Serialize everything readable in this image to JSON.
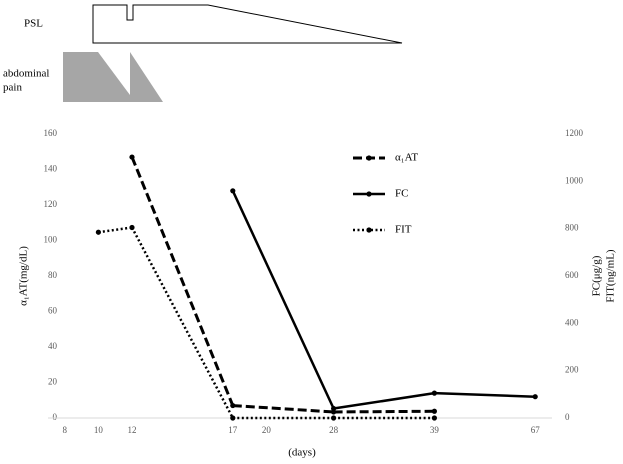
{
  "diagram": {
    "psl": "PSL",
    "pain": [
      "abdominal",
      "pain"
    ]
  },
  "chart_data": {
    "type": "line",
    "categories": [
      "8",
      "10",
      "12",
      null,
      null,
      "17",
      "20",
      null,
      "28",
      null,
      null,
      "39",
      null,
      null,
      "67"
    ],
    "xlabel": "(days)",
    "ylabel": "α₁AT(mg/dL)",
    "y2label": [
      "FC(μg/g)",
      "FIT(ng/mL)"
    ],
    "ylim": [
      0,
      160
    ],
    "yticks": [
      0,
      20,
      40,
      60,
      80,
      100,
      120,
      140,
      160
    ],
    "y2lim": [
      0,
      1200
    ],
    "y2ticks": [
      0,
      200,
      400,
      600,
      800,
      1000,
      1200
    ],
    "grid": false,
    "series": [
      {
        "name": "α₁AT",
        "color": "#000000",
        "dash": "dashed",
        "axis": "y",
        "values": [
          null,
          null,
          147,
          null,
          null,
          7,
          null,
          null,
          3.4,
          null,
          null,
          3.8,
          null,
          null,
          null
        ]
      },
      {
        "name": "FC",
        "color": "#000000",
        "dash": "solid",
        "axis": "y2",
        "values": [
          null,
          null,
          null,
          null,
          null,
          960,
          null,
          null,
          40,
          null,
          null,
          105,
          null,
          null,
          90
        ]
      },
      {
        "name": "FIT",
        "color": "#000000",
        "dash": "dotted",
        "axis": "y2",
        "values": [
          null,
          785,
          805,
          null,
          null,
          0,
          null,
          null,
          0,
          null,
          null,
          0,
          null,
          null,
          null
        ]
      }
    ]
  }
}
